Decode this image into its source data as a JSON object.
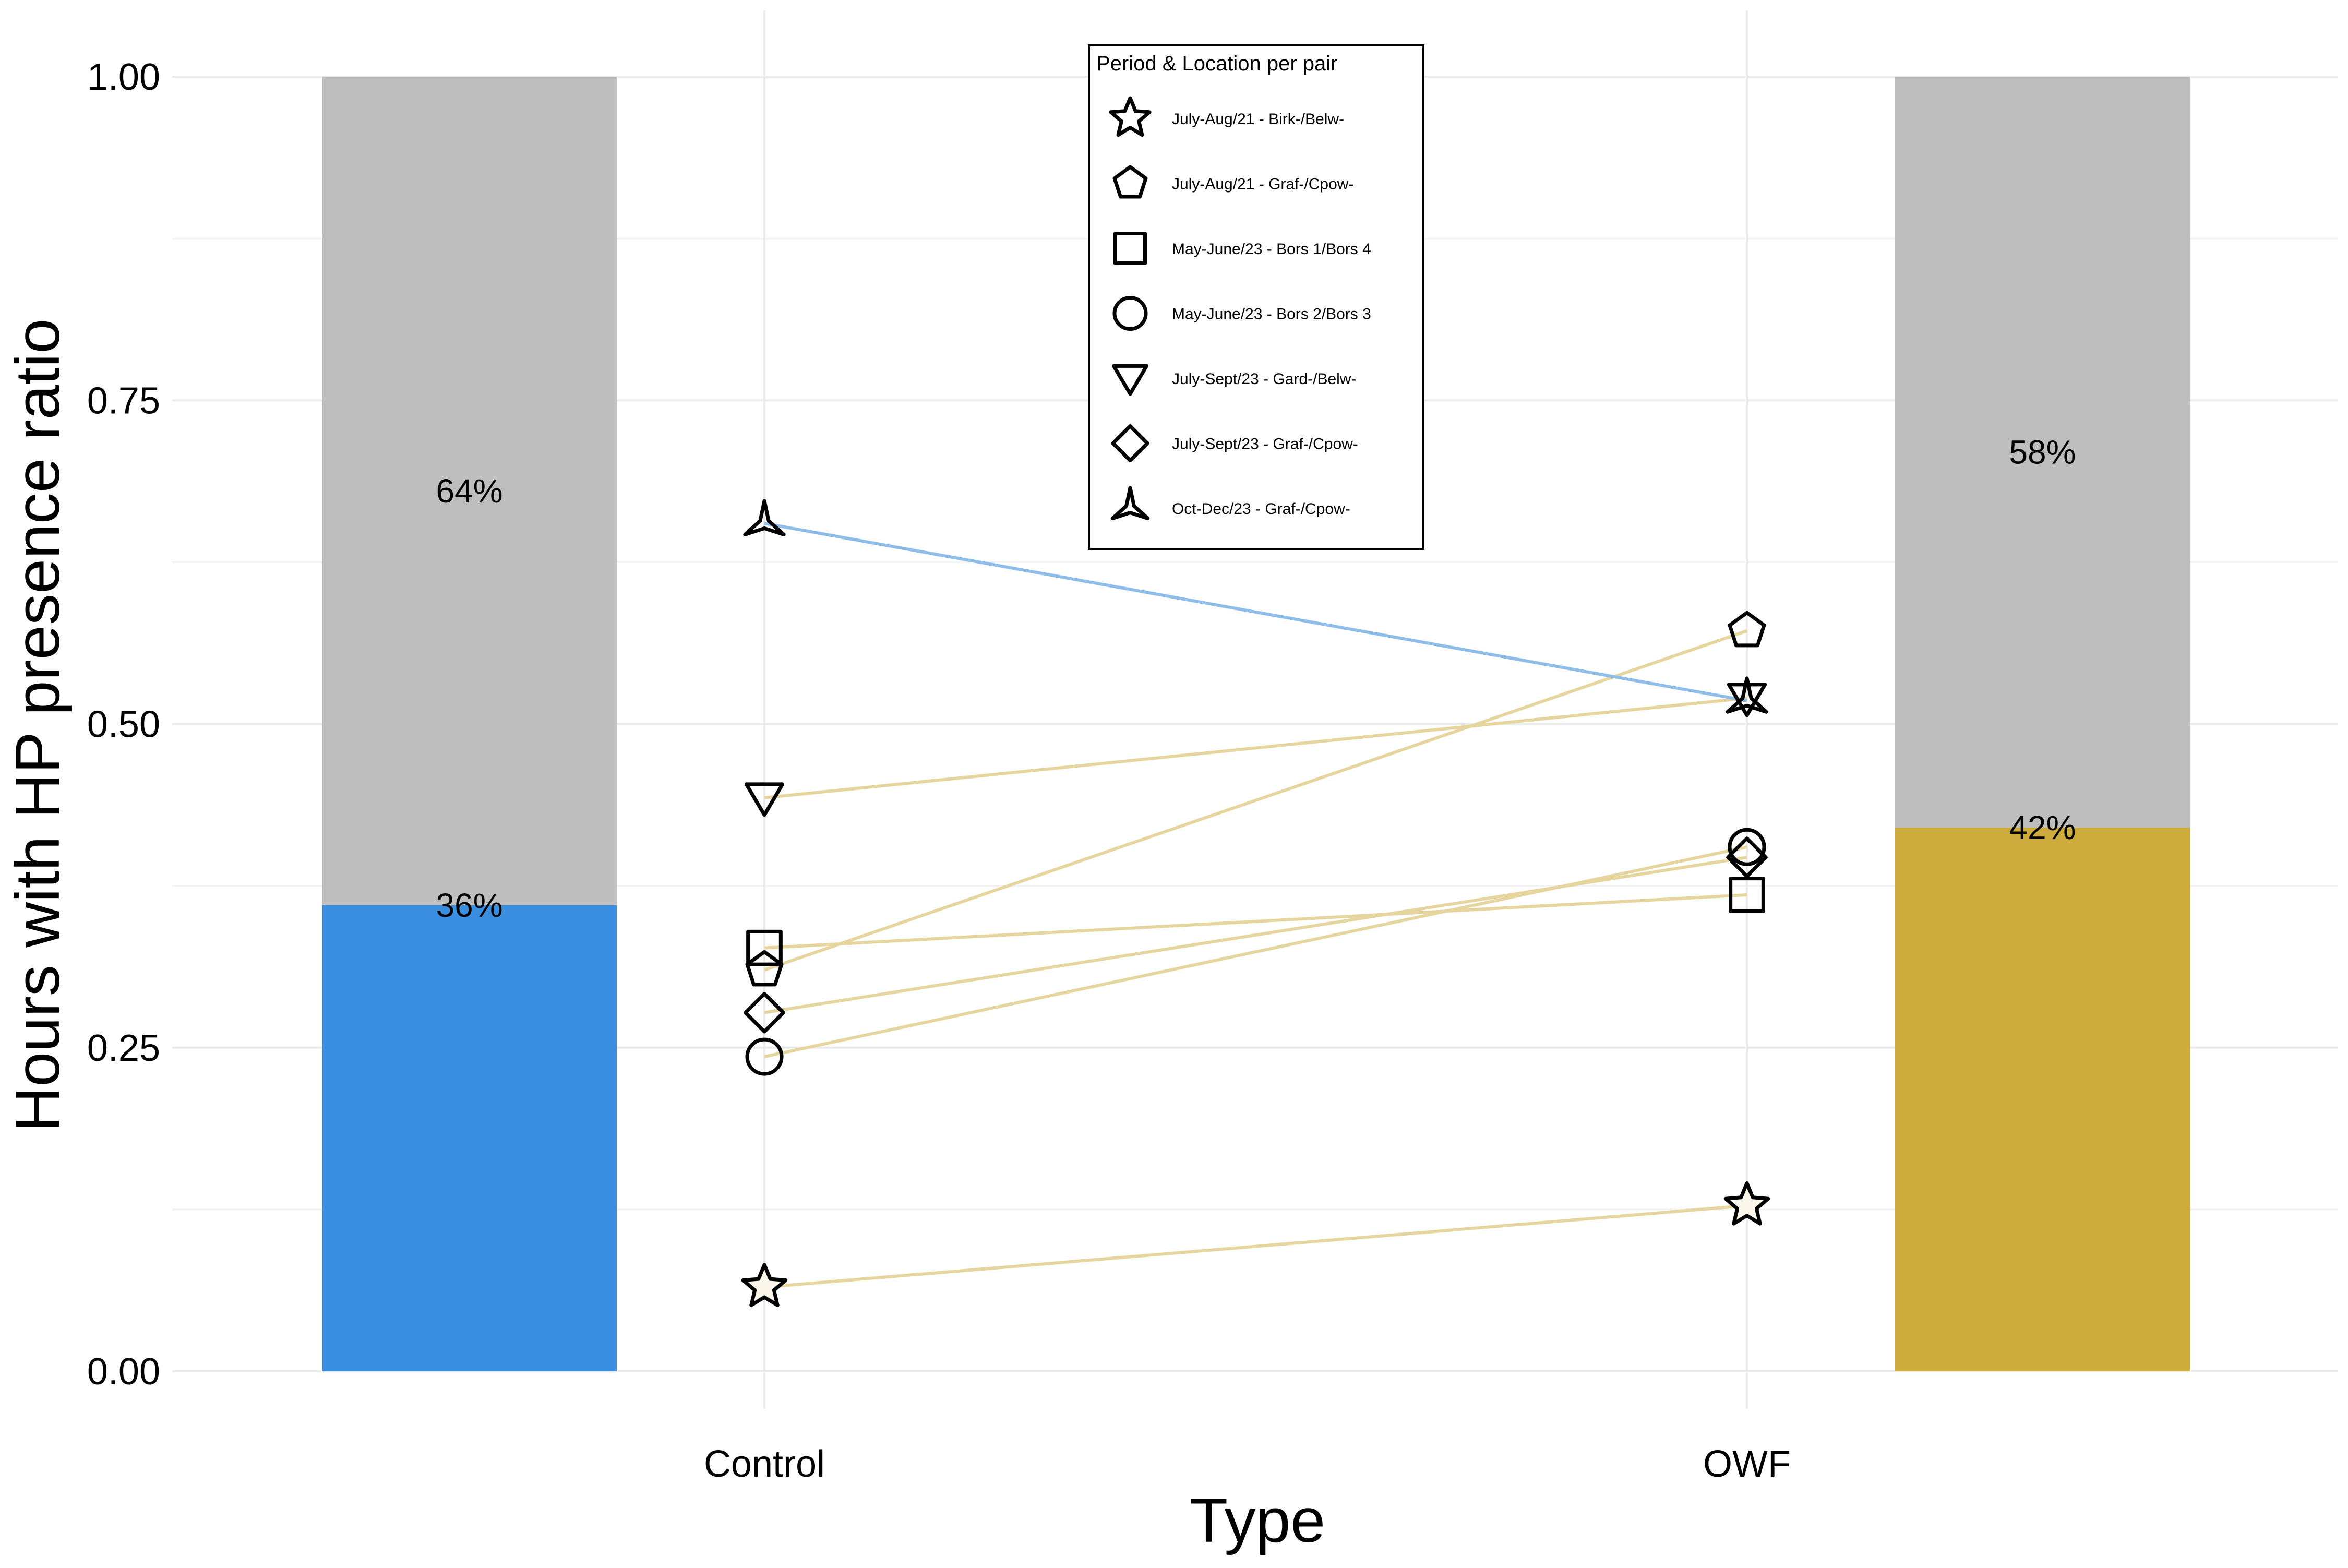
{
  "chart_data": {
    "type": "scatter",
    "xlabel": "Type",
    "ylabel": "Hours with HP presence ratio",
    "ylim": [
      0,
      1
    ],
    "y_ticks": [
      "0.00",
      "0.25",
      "0.50",
      "0.75",
      "1.00"
    ],
    "y_tick_values": [
      0,
      0.25,
      0.5,
      0.75,
      1.0
    ],
    "categories": [
      "Control",
      "OWF"
    ],
    "grid": true,
    "stacked_bars": [
      {
        "category": "Control",
        "side": "left",
        "presence": 0.36,
        "presence_label": "36%",
        "absence_label": "64%",
        "presence_color": "#3A8EDF",
        "absence_color": "#BEBEBE"
      },
      {
        "category": "OWF",
        "side": "right",
        "presence": 0.42,
        "presence_label": "42%",
        "absence_label": "58%",
        "presence_color": "#CDAB3C",
        "absence_color": "#BEBEBE"
      }
    ],
    "legend": {
      "title": "Period & Location per pair",
      "placement": "top-center",
      "entries": [
        {
          "label": "July-Aug/21 - Birk-/Belw-",
          "shape": "star"
        },
        {
          "label": "July-Aug/21 - Graf-/Cpow-",
          "shape": "pentagon"
        },
        {
          "label": "May-June/23 - Bors 1/Bors 4",
          "shape": "square"
        },
        {
          "label": "May-June/23 - Bors 2/Bors 3",
          "shape": "circle"
        },
        {
          "label": "July-Sept/23 - Gard-/Belw-",
          "shape": "triangle-down"
        },
        {
          "label": "July-Sept/23 - Graf-/Cpow-",
          "shape": "diamond"
        },
        {
          "label": "Oct-Dec/23 - Graf-/Cpow-",
          "shape": "tri-star"
        }
      ]
    },
    "pairs": [
      {
        "label": "July-Aug/21 - Birk-/Belw-",
        "shape": "star",
        "control": 0.065,
        "owf": 0.128,
        "line_color": "#E6D59E"
      },
      {
        "label": "July-Aug/21 - Graf-/Cpow-",
        "shape": "pentagon",
        "control": 0.31,
        "owf": 0.572,
        "line_color": "#E6D59E"
      },
      {
        "label": "May-June/23 - Bors 1/Bors 4",
        "shape": "square",
        "control": 0.327,
        "owf": 0.368,
        "line_color": "#E6D59E"
      },
      {
        "label": "May-June/23 - Bors 2/Bors 3",
        "shape": "circle",
        "control": 0.243,
        "owf": 0.405,
        "line_color": "#E6D59E"
      },
      {
        "label": "July-Sept/23 - Gard-/Belw-",
        "shape": "triangle-down",
        "control": 0.443,
        "owf": 0.52,
        "line_color": "#E6D59E"
      },
      {
        "label": "July-Sept/23 - Graf-/Cpow-",
        "shape": "diamond",
        "control": 0.277,
        "owf": 0.397,
        "line_color": "#E6D59E"
      },
      {
        "label": "Oct-Dec/23 - Graf-/Cpow-",
        "shape": "tri-star",
        "control": 0.655,
        "owf": 0.518,
        "line_color": "#8DBDE8"
      }
    ]
  }
}
